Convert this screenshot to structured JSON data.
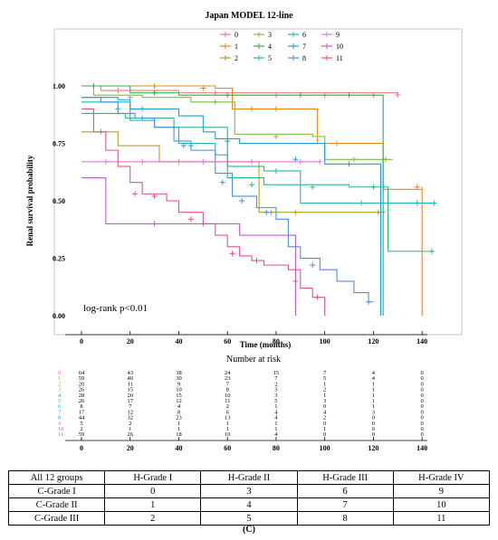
{
  "chart_data": {
    "type": "line",
    "title": "Japan MODEL 12-line",
    "xlabel": "Time (months)",
    "ylabel": "Renal survival probability",
    "xlim": [
      0,
      150
    ],
    "ylim": [
      0,
      1.0
    ],
    "xticks": [
      "0",
      "20",
      "40",
      "60",
      "80",
      "100",
      "120",
      "140"
    ],
    "yticks": [
      "0.00",
      "0.25",
      "0.50",
      "0.75",
      "1.00"
    ],
    "annotation": "log-rank p<0.01",
    "legend_position": "top",
    "series": [
      {
        "name": "0",
        "color": "#f07878",
        "points": [
          [
            0,
            1.0
          ],
          [
            8,
            0.98
          ],
          [
            40,
            0.97
          ],
          [
            130,
            0.96
          ]
        ],
        "censor": [
          [
            15,
            0.98
          ],
          [
            30,
            0.97
          ],
          [
            55,
            0.97
          ],
          [
            80,
            0.96
          ],
          [
            100,
            0.96
          ],
          [
            120,
            0.96
          ],
          [
            130,
            0.96
          ]
        ]
      },
      {
        "name": "1",
        "color": "#e88a1a",
        "points": [
          [
            0,
            1.0
          ],
          [
            55,
            0.99
          ],
          [
            62,
            0.9
          ],
          [
            88,
            0.9
          ],
          [
            97,
            0.75
          ],
          [
            124,
            0.75
          ],
          [
            124,
            0.55
          ],
          [
            134,
            0.55
          ],
          [
            140,
            0.56
          ],
          [
            140,
            0.0
          ]
        ],
        "censor": [
          [
            30,
            1.0
          ],
          [
            50,
            0.99
          ],
          [
            70,
            0.9
          ],
          [
            80,
            0.9
          ],
          [
            105,
            0.75
          ],
          [
            138,
            0.56
          ]
        ]
      },
      {
        "name": "2",
        "color": "#b5a020",
        "points": [
          [
            0,
            0.8
          ],
          [
            15,
            0.8
          ],
          [
            15,
            0.74
          ],
          [
            32,
            0.74
          ],
          [
            32,
            0.67
          ],
          [
            70,
            0.67
          ],
          [
            73,
            0.45
          ],
          [
            125,
            0.45
          ]
        ],
        "censor": [
          [
            8,
            0.8
          ],
          [
            40,
            0.67
          ],
          [
            60,
            0.67
          ],
          [
            78,
            0.45
          ],
          [
            88,
            0.45
          ],
          [
            122,
            0.45
          ]
        ]
      },
      {
        "name": "3",
        "color": "#7fbf3f",
        "points": [
          [
            0,
            1.0
          ],
          [
            5,
            0.96
          ],
          [
            25,
            0.95
          ],
          [
            45,
            0.93
          ],
          [
            62,
            0.93
          ],
          [
            63,
            0.79
          ],
          [
            95,
            0.78
          ],
          [
            100,
            0.68
          ],
          [
            128,
            0.68
          ]
        ],
        "censor": [
          [
            20,
            0.95
          ],
          [
            55,
            0.93
          ],
          [
            80,
            0.78
          ],
          [
            112,
            0.68
          ],
          [
            125,
            0.68
          ]
        ]
      },
      {
        "name": "4",
        "color": "#2bb04a",
        "points": [
          [
            0,
            1.0
          ],
          [
            20,
            0.97
          ],
          [
            40,
            0.96
          ],
          [
            124,
            0.96
          ],
          [
            124,
            0.0
          ]
        ],
        "censor": [
          [
            5,
            1.0
          ],
          [
            30,
            0.97
          ],
          [
            60,
            0.96
          ],
          [
            90,
            0.96
          ],
          [
            110,
            0.96
          ]
        ]
      },
      {
        "name": "5",
        "color": "#2db58a",
        "points": [
          [
            0,
            0.88
          ],
          [
            10,
            0.88
          ],
          [
            18,
            0.86
          ],
          [
            28,
            0.86
          ],
          [
            38,
            0.82
          ],
          [
            58,
            0.82
          ],
          [
            60,
            0.6
          ],
          [
            75,
            0.57
          ],
          [
            110,
            0.56
          ],
          [
            125,
            0.56
          ],
          [
            126,
            0.28
          ],
          [
            145,
            0.28
          ]
        ],
        "censor": [
          [
            5,
            0.88
          ],
          [
            25,
            0.86
          ],
          [
            70,
            0.57
          ],
          [
            95,
            0.56
          ],
          [
            120,
            0.56
          ],
          [
            144,
            0.28
          ]
        ]
      },
      {
        "name": "6",
        "color": "#1fb5b5",
        "points": [
          [
            0,
            0.93
          ],
          [
            10,
            0.93
          ],
          [
            20,
            0.85
          ],
          [
            30,
            0.82
          ],
          [
            40,
            0.75
          ],
          [
            55,
            0.7
          ],
          [
            60,
            0.65
          ],
          [
            70,
            0.65
          ],
          [
            75,
            0.63
          ],
          [
            90,
            0.63
          ],
          [
            90,
            0.49
          ],
          [
            110,
            0.49
          ],
          [
            120,
            0.49
          ],
          [
            145,
            0.49
          ]
        ],
        "censor": [
          [
            15,
            0.9
          ],
          [
            45,
            0.74
          ],
          [
            80,
            0.63
          ],
          [
            115,
            0.49
          ],
          [
            138,
            0.49
          ],
          [
            145,
            0.49
          ]
        ]
      },
      {
        "name": "7",
        "color": "#1a9ed8",
        "points": [
          [
            0,
            0.95
          ],
          [
            15,
            0.94
          ],
          [
            20,
            0.9
          ],
          [
            40,
            0.87
          ],
          [
            50,
            0.8
          ],
          [
            55,
            0.77
          ],
          [
            65,
            0.75
          ],
          [
            100,
            0.66
          ],
          [
            120,
            0.66
          ],
          [
            123,
            0.0
          ]
        ],
        "censor": [
          [
            25,
            0.9
          ],
          [
            60,
            0.76
          ],
          [
            88,
            0.68
          ],
          [
            110,
            0.66
          ]
        ]
      },
      {
        "name": "8",
        "color": "#4a8fe0",
        "points": [
          [
            0,
            0.95
          ],
          [
            8,
            0.93
          ],
          [
            15,
            0.88
          ],
          [
            22,
            0.86
          ],
          [
            30,
            0.82
          ],
          [
            38,
            0.76
          ],
          [
            45,
            0.72
          ],
          [
            55,
            0.62
          ],
          [
            62,
            0.52
          ],
          [
            72,
            0.47
          ],
          [
            80,
            0.42
          ],
          [
            85,
            0.3
          ],
          [
            90,
            0.25
          ],
          [
            98,
            0.2
          ],
          [
            105,
            0.15
          ],
          [
            112,
            0.1
          ],
          [
            118,
            0.06
          ],
          [
            120,
            0.06
          ]
        ],
        "censor": [
          [
            42,
            0.74
          ],
          [
            58,
            0.58
          ],
          [
            66,
            0.5
          ],
          [
            76,
            0.45
          ],
          [
            95,
            0.22
          ],
          [
            118,
            0.06
          ]
        ]
      },
      {
        "name": "9",
        "color": "#e07ad8",
        "points": [
          [
            0,
            0.67
          ],
          [
            20,
            0.67
          ],
          [
            30,
            0.67
          ],
          [
            98,
            0.67
          ]
        ],
        "censor": [
          [
            10,
            0.67
          ],
          [
            25,
            0.67
          ],
          [
            50,
            0.67
          ],
          [
            70,
            0.67
          ],
          [
            90,
            0.67
          ],
          [
            98,
            0.67
          ]
        ]
      },
      {
        "name": "10",
        "color": "#c05ad8",
        "points": [
          [
            0,
            0.6
          ],
          [
            10,
            0.6
          ],
          [
            10,
            0.4
          ],
          [
            65,
            0.4
          ],
          [
            65,
            0.35
          ],
          [
            88,
            0.35
          ],
          [
            88,
            0.0
          ]
        ],
        "censor": [
          [
            30,
            0.4
          ],
          [
            50,
            0.4
          ]
        ]
      },
      {
        "name": "11",
        "color": "#e6508a",
        "points": [
          [
            0,
            0.9
          ],
          [
            5,
            0.8
          ],
          [
            10,
            0.72
          ],
          [
            15,
            0.65
          ],
          [
            20,
            0.58
          ],
          [
            25,
            0.53
          ],
          [
            35,
            0.5
          ],
          [
            40,
            0.45
          ],
          [
            50,
            0.4
          ],
          [
            55,
            0.35
          ],
          [
            60,
            0.3
          ],
          [
            65,
            0.26
          ],
          [
            70,
            0.24
          ],
          [
            75,
            0.22
          ],
          [
            85,
            0.2
          ],
          [
            90,
            0.12
          ],
          [
            95,
            0.08
          ],
          [
            100,
            0.0
          ]
        ],
        "censor": [
          [
            22,
            0.53
          ],
          [
            30,
            0.52
          ],
          [
            45,
            0.42
          ],
          [
            62,
            0.27
          ],
          [
            72,
            0.24
          ],
          [
            88,
            0.15
          ],
          [
            97,
            0.08
          ]
        ]
      }
    ]
  },
  "risk_table": {
    "title": "Number at risk",
    "rows": [
      [
        "64",
        "43",
        "38",
        "24",
        "15",
        "7",
        "4",
        "0"
      ],
      [
        "59",
        "40",
        "30",
        "23",
        "7",
        "5",
        "4",
        "0"
      ],
      [
        "20",
        "11",
        "9",
        "7",
        "2",
        "1",
        "1",
        "0"
      ],
      [
        "26",
        "15",
        "10",
        "8",
        "3",
        "2",
        "1",
        "0"
      ],
      [
        "28",
        "20",
        "15",
        "10",
        "3",
        "1",
        "1",
        "0"
      ],
      [
        "26",
        "17",
        "12",
        "11",
        "5",
        "3",
        "1",
        "0"
      ],
      [
        "8",
        "7",
        "4",
        "2",
        "1",
        "0",
        "1",
        "0"
      ],
      [
        "17",
        "12",
        "8",
        "6",
        "4",
        "4",
        "3",
        "0"
      ],
      [
        "44",
        "32",
        "23",
        "13",
        "4",
        "2",
        "0",
        "0"
      ],
      [
        "5",
        "2",
        "1",
        "1",
        "1",
        "0",
        "0",
        "0"
      ],
      [
        "2",
        "1",
        "1",
        "1",
        "1",
        "1",
        "0",
        "0"
      ],
      [
        "59",
        "26",
        "18",
        "10",
        "4",
        "0",
        "0",
        "0"
      ]
    ]
  },
  "group_table": {
    "headers": [
      "All 12 groups",
      "H-Grade I",
      "H-Grade II",
      "H-Grade III",
      "H-Grade IV"
    ],
    "rows": [
      [
        "C-Grade I",
        "0",
        "3",
        "6",
        "9"
      ],
      [
        "C-Grade II",
        "1",
        "4",
        "7",
        "10"
      ],
      [
        "C-Grade III",
        "2",
        "5",
        "8",
        "11"
      ]
    ]
  },
  "caption": "(C)"
}
